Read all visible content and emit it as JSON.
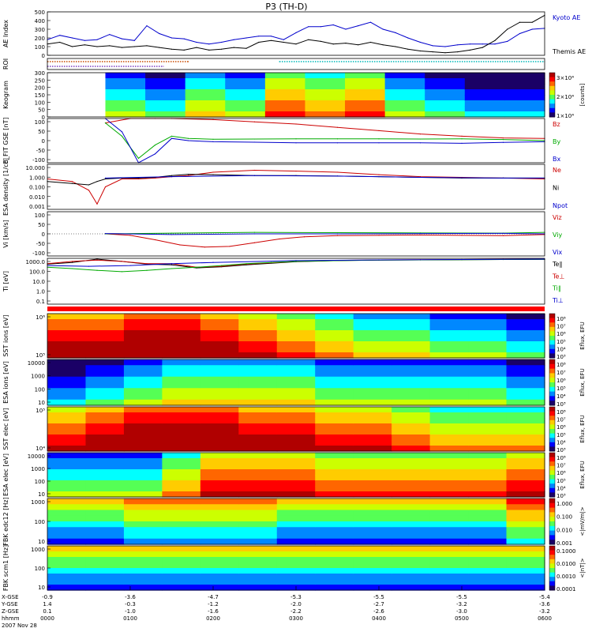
{
  "header": {
    "title": "P3 (TH-D)"
  },
  "chart_data": [
    {
      "type": "line",
      "panel": "ae",
      "ylabel": "AE Index",
      "ylim": [
        0,
        500
      ],
      "yticks": [
        "0",
        "100",
        "200",
        "300",
        "400",
        "500"
      ],
      "series": [
        {
          "name": "Kyoto AE",
          "color": "#0000cc",
          "x": [
            0,
            0.15,
            0.3,
            0.45,
            0.6,
            0.75,
            0.9,
            1.05,
            1.2,
            1.35,
            1.5,
            1.65,
            1.8,
            1.95,
            2.1,
            2.25,
            2.4,
            2.55,
            2.7,
            2.85,
            3.0,
            3.15,
            3.3,
            3.45,
            3.6,
            3.75,
            3.9,
            4.05,
            4.2,
            4.35,
            4.5,
            4.65,
            4.8,
            4.95,
            5.1,
            5.25,
            5.4,
            5.55,
            5.7,
            5.85,
            6.0
          ],
          "y": [
            180,
            230,
            200,
            170,
            180,
            240,
            190,
            170,
            340,
            250,
            200,
            190,
            150,
            130,
            150,
            180,
            200,
            220,
            220,
            180,
            260,
            330,
            330,
            350,
            300,
            340,
            380,
            300,
            260,
            200,
            150,
            110,
            100,
            120,
            130,
            130,
            130,
            160,
            250,
            300,
            310
          ]
        },
        {
          "name": "Themis AE",
          "color": "#000000",
          "x": [
            0,
            0.15,
            0.3,
            0.45,
            0.6,
            0.75,
            0.9,
            1.05,
            1.2,
            1.35,
            1.5,
            1.65,
            1.8,
            1.95,
            2.1,
            2.25,
            2.4,
            2.55,
            2.7,
            2.85,
            3.0,
            3.15,
            3.3,
            3.45,
            3.6,
            3.75,
            3.9,
            4.05,
            4.2,
            4.35,
            4.5,
            4.65,
            4.8,
            4.95,
            5.1,
            5.25,
            5.4,
            5.55,
            5.7,
            5.85,
            6.0
          ],
          "y": [
            130,
            150,
            100,
            120,
            100,
            110,
            90,
            100,
            110,
            90,
            70,
            60,
            90,
            60,
            70,
            90,
            80,
            150,
            170,
            150,
            130,
            180,
            160,
            130,
            140,
            120,
            150,
            120,
            100,
            70,
            50,
            40,
            30,
            40,
            60,
            90,
            170,
            300,
            380,
            380,
            460
          ]
        }
      ],
      "legend": [
        "Kyoto AE",
        "Themis AE"
      ]
    },
    {
      "type": "line",
      "panel": "roi",
      "ylabel": "ROI",
      "series": [
        {
          "name": "",
          "color": "#c84a00",
          "x": [
            0,
            1.7
          ],
          "y": [
            1,
            1
          ]
        },
        {
          "name": "",
          "color": "#00b8b8",
          "x": [
            2.8,
            6.0
          ],
          "y": [
            1,
            1
          ]
        },
        {
          "name": "",
          "color": "#7a3cc0",
          "x": [
            0,
            1.4
          ],
          "y": [
            0,
            0
          ]
        }
      ]
    },
    {
      "type": "heatmap",
      "panel": "keogram",
      "ylabel": "Keogram",
      "ylim": [
        0,
        300
      ],
      "yticks": [
        "0",
        "50",
        "100",
        "150",
        "200",
        "250",
        "300"
      ],
      "colorbar": {
        "ticks": [
          "3×10⁴",
          "2×10⁴",
          "1×10⁴"
        ],
        "unit": "[counts]"
      },
      "x": [
        0.7,
        1.2,
        1.7,
        2.2,
        2.7,
        3.2,
        3.7,
        4.2,
        4.7,
        5.2,
        5.7
      ],
      "values": [
        3,
        2,
        4,
        3,
        6,
        5,
        6,
        3,
        2,
        1,
        1
      ]
    },
    {
      "type": "line",
      "panel": "bfield",
      "ylabel": "B_FIT GSE [nT]",
      "ylim": [
        -100,
        100
      ],
      "yticks": [
        "100",
        "50",
        "0",
        "-50",
        "-100"
      ],
      "series": [
        {
          "name": "Bz",
          "color": "#cc0000",
          "x": [
            0.7,
            1.0,
            1.3,
            1.5,
            2.0,
            2.5,
            3.0,
            3.5,
            4.0,
            4.5,
            5.0,
            5.5,
            6.0
          ],
          "y": [
            80,
            100,
            100,
            100,
            95,
            85,
            75,
            60,
            45,
            30,
            20,
            12,
            10
          ]
        },
        {
          "name": "By",
          "color": "#00aa00",
          "x": [
            0.7,
            0.9,
            1.1,
            1.3,
            1.5,
            1.7,
            2.0,
            2.5,
            3.0,
            3.5,
            4.0,
            4.5,
            5.0,
            5.5,
            6.0
          ],
          "y": [
            80,
            20,
            -80,
            -20,
            20,
            10,
            6,
            7,
            8,
            8,
            8,
            7,
            8,
            5,
            0
          ]
        },
        {
          "name": "Bx",
          "color": "#0000cc",
          "x": [
            0.7,
            0.9,
            1.1,
            1.3,
            1.5,
            1.7,
            2.0,
            2.5,
            3.0,
            3.5,
            4.0,
            4.5,
            5.0,
            5.5,
            6.0
          ],
          "y": [
            100,
            40,
            -100,
            -60,
            10,
            0,
            -5,
            -7,
            -10,
            -10,
            -10,
            -10,
            -12,
            -8,
            -5
          ]
        }
      ],
      "legend": [
        "Bz",
        "By",
        "Bx"
      ]
    },
    {
      "type": "line",
      "panel": "density",
      "ylabel": "ESA density [1/cc]",
      "scale": "log",
      "ylim": [
        0.001,
        10
      ],
      "yticks": [
        "10.000",
        "1.000",
        "0.100",
        "0.010",
        "0.001"
      ],
      "series": [
        {
          "name": "Ne",
          "color": "#cc0000",
          "x": [
            0,
            0.3,
            0.5,
            0.6,
            0.7,
            0.9,
            1.1,
            1.3,
            1.5,
            1.7,
            2.0,
            2.5,
            3.0,
            3.5,
            4.0,
            4.5,
            5.0,
            5.5,
            6.0
          ],
          "y": [
            0.5,
            0.3,
            0.05,
            0.003,
            0.1,
            0.5,
            0.5,
            0.6,
            0.8,
            1.0,
            2.0,
            3.0,
            2.5,
            2.0,
            1.2,
            0.8,
            0.7,
            0.6,
            0.5
          ]
        },
        {
          "name": "Ni",
          "color": "#000000",
          "x": [
            0,
            0.3,
            0.5,
            0.6,
            0.7,
            0.9,
            1.1,
            1.3,
            1.5,
            1.7,
            2.0,
            2.5,
            3.0,
            3.5,
            4.0,
            4.5,
            5.0,
            5.5,
            6.0
          ],
          "y": [
            0.3,
            0.2,
            0.15,
            0.3,
            0.5,
            0.6,
            0.6,
            0.7,
            1.0,
            1.3,
            1.2,
            1.0,
            1.0,
            0.9,
            0.8,
            0.7,
            0.6,
            0.6,
            0.6
          ]
        },
        {
          "name": "Npot",
          "color": "#0000cc",
          "x": [
            0.7,
            1.5,
            2.5,
            3.5,
            4.5,
            5.5,
            6.0
          ],
          "y": [
            0.6,
            0.8,
            1.0,
            0.9,
            0.7,
            0.6,
            0.6
          ]
        }
      ],
      "legend": [
        "Ne",
        "Ni",
        "Npot"
      ]
    },
    {
      "type": "line",
      "panel": "velocity",
      "ylabel": "Vi [km/s]",
      "ylim": [
        -150,
        150
      ],
      "yticks": [
        "100",
        "50",
        "0",
        "-50",
        "-100"
      ],
      "series": [
        {
          "name": "Viz",
          "color": "#cc0000",
          "x": [
            0.7,
            1.0,
            1.3,
            1.6,
            1.9,
            2.2,
            2.5,
            2.8,
            3.1,
            3.5,
            4.0,
            4.5,
            5.0,
            5.5,
            6.0
          ],
          "y": [
            0,
            -10,
            -40,
            -75,
            -90,
            -85,
            -60,
            -35,
            -20,
            -12,
            -10,
            -8,
            -10,
            -12,
            -5
          ]
        },
        {
          "name": "Viy",
          "color": "#00aa00",
          "x": [
            0.7,
            1.5,
            2.5,
            3.5,
            4.5,
            5.5,
            6.0
          ],
          "y": [
            0,
            5,
            10,
            8,
            6,
            5,
            10
          ]
        },
        {
          "name": "Vix",
          "color": "#0000cc",
          "x": [
            0.7,
            1.5,
            2.5,
            3.5,
            4.5,
            5.5,
            6.0
          ],
          "y": [
            2,
            -5,
            0,
            0,
            2,
            3,
            0
          ]
        }
      ],
      "legend": [
        "Viz",
        "Viy",
        "Vix"
      ]
    },
    {
      "type": "line",
      "panel": "temperature",
      "ylabel": "Ti [eV]",
      "scale": "log",
      "ylim": [
        0.1,
        3000
      ],
      "yticks": [
        "1000.0",
        "100.0",
        "10.0",
        "1.0",
        "0.1"
      ],
      "series": [
        {
          "name": "Te∥",
          "color": "#000000",
          "x": [
            0,
            0.3,
            0.6,
            0.9,
            1.2,
            1.5,
            1.8,
            2.1,
            2.4,
            2.7,
            3.0,
            3.5,
            4.0,
            4.5,
            5.0,
            5.5,
            6.0
          ],
          "y": [
            800,
            1200,
            2500,
            1500,
            800,
            700,
            350,
            450,
            700,
            1000,
            1400,
            1800,
            2000,
            2100,
            2200,
            2300,
            2400
          ]
        },
        {
          "name": "Te⊥",
          "color": "#cc0000",
          "x": [
            0,
            0.3,
            0.6,
            0.9,
            1.2,
            1.5,
            1.8,
            2.1,
            2.4,
            2.7,
            3.0,
            3.5,
            4.0,
            4.5,
            5.0,
            5.5,
            6.0
          ],
          "y": [
            900,
            1500,
            2000,
            1500,
            900,
            900,
            400,
            500,
            800,
            1100,
            1500,
            1900,
            2100,
            2200,
            2300,
            2400,
            2500
          ]
        },
        {
          "name": "Ti∥",
          "color": "#00aa00",
          "x": [
            0,
            0.3,
            0.6,
            0.9,
            1.2,
            1.5,
            1.8,
            2.1,
            2.4,
            2.7,
            3.0,
            3.5,
            4.0,
            4.5,
            5.0,
            5.5,
            6.0
          ],
          "y": [
            400,
            300,
            200,
            150,
            200,
            300,
            400,
            600,
            900,
            1200,
            1500,
            1800,
            2000,
            2100,
            2200,
            2300,
            2400
          ]
        },
        {
          "name": "Ti⊥",
          "color": "#0000cc",
          "x": [
            0,
            0.5,
            1.0,
            1.5,
            2.0,
            3.0,
            4.0,
            5.0,
            6.0
          ],
          "y": [
            600,
            500,
            600,
            900,
            1200,
            1800,
            2100,
            2300,
            2500
          ]
        }
      ],
      "legend": [
        "Te∥",
        "Te⊥",
        "Ti∥",
        "Ti⊥"
      ]
    },
    {
      "type": "heatmap",
      "panel": "sst_ion",
      "ylabel": "SST ions [eV]",
      "yticks": [
        "10⁶",
        "10⁵"
      ],
      "colorbar": {
        "ticks": [
          "10⁸",
          "10⁷",
          "10⁶",
          "10⁵",
          "10⁴",
          "10³"
        ],
        "unit": "Eflux, EFU"
      },
      "x": [
        0,
        0.5,
        1.0,
        1.5,
        2.0,
        2.5,
        3.0,
        3.5,
        4.0,
        4.5,
        5.0,
        5.5,
        6.0
      ],
      "values": [
        8,
        8,
        9,
        9,
        8,
        7,
        6,
        5,
        4,
        4,
        3,
        3,
        2
      ]
    },
    {
      "type": "heatmap",
      "panel": "esa_ion",
      "ylabel": "ESA ions [eV]",
      "yticks": [
        "10000",
        "1000",
        "100",
        "10"
      ],
      "colorbar": {
        "ticks": [
          "10⁸",
          "10⁷",
          "10⁶",
          "10⁵",
          "10⁴",
          "10³"
        ],
        "unit": "Eflux, EFU"
      },
      "x": [
        0,
        0.5,
        1.0,
        1.5,
        2.0,
        2.5,
        3.0,
        3.5,
        4.0,
        4.5,
        5.0,
        5.5,
        6.0
      ],
      "values": [
        1,
        2,
        3,
        4,
        4,
        4,
        4,
        3,
        3,
        3,
        3,
        3,
        2
      ]
    },
    {
      "type": "heatmap",
      "panel": "sst_elec",
      "ylabel": "SST elec [eV]",
      "yticks": [
        "10⁵",
        "10⁴"
      ],
      "colorbar": {
        "ticks": [
          "10⁸",
          "10⁷",
          "10⁶",
          "10⁵",
          "10⁴",
          "10³"
        ],
        "unit": "Eflux, EFU"
      },
      "x": [
        0,
        0.5,
        1.0,
        1.5,
        2.0,
        2.5,
        3.0,
        3.5,
        4.0,
        4.5,
        5.0,
        5.5,
        6.0
      ],
      "values": [
        7,
        8,
        9,
        9,
        9,
        8,
        8,
        7,
        7,
        6,
        5,
        5,
        5
      ]
    },
    {
      "type": "heatmap",
      "panel": "esa_elec",
      "ylabel": "ESA elec [eV]",
      "yticks": [
        "10000",
        "1000",
        "100",
        "10"
      ],
      "colorbar": {
        "ticks": [
          "10⁸",
          "10⁷",
          "10⁶",
          "10⁵",
          "10⁴",
          "10³"
        ],
        "unit": "Eflux, EFU"
      },
      "x": [
        0,
        0.5,
        1.0,
        1.5,
        2.0,
        2.5,
        3.0,
        3.5,
        4.0,
        4.5,
        5.0,
        5.5,
        6.0
      ],
      "values": [
        3,
        3,
        3,
        5,
        7,
        7,
        7,
        6,
        6,
        6,
        6,
        6,
        7
      ]
    },
    {
      "type": "heatmap",
      "panel": "fbk_e",
      "ylabel": "FBK edc12 [Hz]",
      "yticks": [
        "1000",
        "100",
        "10"
      ],
      "colorbar": {
        "ticks": [
          "1.000",
          "0.100",
          "0.010",
          "0.001"
        ],
        "unit": "<|mV/m|>"
      },
      "x": [
        0,
        0.5,
        1.0,
        1.5,
        2.0,
        2.5,
        3.0,
        3.5,
        4.0,
        4.5,
        5.0,
        5.5,
        6.0
      ],
      "values": [
        3,
        3,
        4,
        4,
        4,
        4,
        3,
        3,
        3,
        3,
        3,
        3,
        5
      ]
    },
    {
      "type": "heatmap",
      "panel": "fbk_b",
      "ylabel": "FBK scm1 [Hz]",
      "yticks": [
        "1000",
        "100",
        "10"
      ],
      "colorbar": {
        "ticks": [
          "0.1000",
          "0.0100",
          "0.0010",
          "0.0001"
        ],
        "unit": "<|nT|>"
      },
      "x": [
        0,
        0.5,
        1.0,
        1.5,
        2.0,
        2.5,
        3.0,
        3.5,
        4.0,
        4.5,
        5.0,
        5.5,
        6.0
      ],
      "values": [
        3,
        3,
        3,
        3,
        3,
        3,
        3,
        3,
        3,
        3,
        3,
        3,
        3
      ]
    }
  ],
  "xaxis": {
    "row_labels": [
      "X-GSE",
      "Y-GSE",
      "Z-GSE",
      "hhmm",
      "2007 Nov 28"
    ],
    "ticks": [
      {
        "x": 0,
        "lines": [
          "-0.9",
          "1.4",
          "0.1",
          "0000"
        ]
      },
      {
        "x": 1.0,
        "lines": [
          "-3.6",
          "-0.3",
          "-1.0",
          "0100"
        ]
      },
      {
        "x": 2.0,
        "lines": [
          "-4.7",
          "-1.2",
          "-1.6",
          "0200"
        ]
      },
      {
        "x": 3.0,
        "lines": [
          "-5.3",
          "-2.0",
          "-2.2",
          "0300"
        ]
      },
      {
        "x": 4.0,
        "lines": [
          "-5.5",
          "-2.7",
          "-2.6",
          "0400"
        ]
      },
      {
        "x": 5.0,
        "lines": [
          "-5.5",
          "-3.2",
          "-3.0",
          "0500"
        ]
      },
      {
        "x": 6.0,
        "lines": [
          "-5.4",
          "-3.6",
          "-3.2",
          "0600"
        ]
      }
    ]
  }
}
